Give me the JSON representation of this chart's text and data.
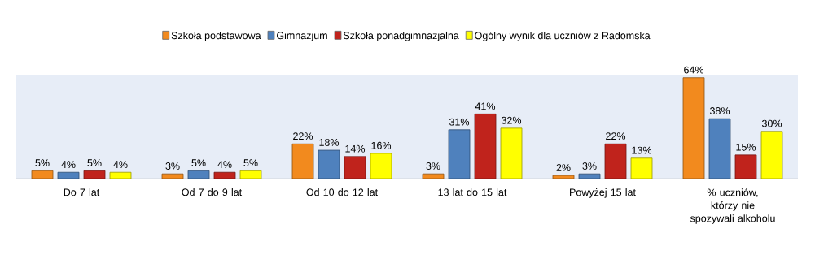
{
  "chart_data": {
    "type": "bar",
    "categories": [
      "Do 7 lat",
      "Od 7 do 9 lat",
      "Od 10 do 12 lat",
      "13 lat do 15 lat",
      "Powyżej 15 lat",
      "% uczniów, którzy nie spozywali alkoholu"
    ],
    "series": [
      {
        "name": "Szkoła podstawowa",
        "color": "#f28a1e",
        "values": [
          5,
          3,
          22,
          3,
          2,
          64
        ],
        "value_labels": [
          "5%",
          "3%",
          "22%",
          "3%",
          "2%",
          "64%"
        ]
      },
      {
        "name": "Gimnazjum",
        "color": "#4f81bd",
        "values": [
          4,
          5,
          18,
          31,
          3,
          38
        ],
        "value_labels": [
          "4%",
          "5%",
          "18%",
          "31%",
          "3%",
          "38%"
        ]
      },
      {
        "name": "Szkoła ponadgimnazjalna",
        "color": "#c0231c",
        "values": [
          5,
          4,
          14,
          41,
          22,
          15
        ],
        "value_labels": [
          "5%",
          "4%",
          "14%",
          "41%",
          "22%",
          "15%"
        ]
      },
      {
        "name": "Ogólny wynik dla uczniów z Radomska",
        "color": "#ffff00",
        "values": [
          4,
          5,
          16,
          32,
          13,
          30
        ],
        "value_labels": [
          "4%",
          "5%",
          "16%",
          "32%",
          "13%",
          "30%"
        ]
      }
    ],
    "legend": "top"
  }
}
